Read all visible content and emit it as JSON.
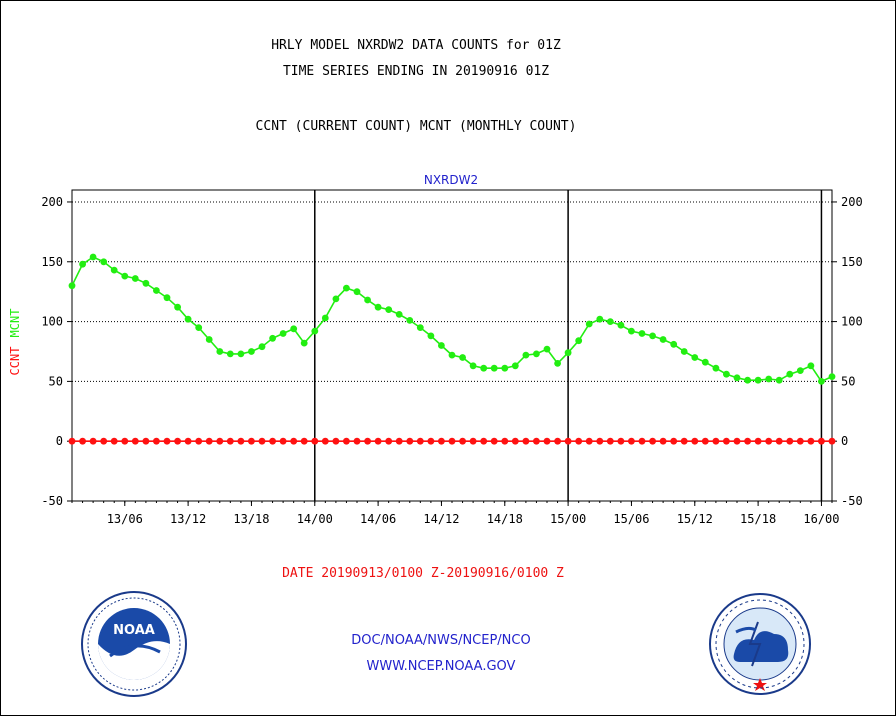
{
  "header": {
    "line1": "HRLY MODEL NXRDW2 DATA COUNTS for 01Z",
    "line2": "TIME SERIES ENDING IN 20190916 01Z",
    "line3": "CCNT (CURRENT COUNT) MCNT (MONTHLY COUNT)"
  },
  "footer": {
    "date_range": "DATE 20190913/0100 Z-20190916/0100 Z",
    "org": "DOC/NOAA/NWS/NCEP/NCO",
    "url": "WWW.NCEP.NOAA.GOV"
  },
  "logos": {
    "left": "noaa-logo",
    "right": "national-weather-service-logo"
  },
  "chart_data": {
    "type": "line",
    "title": "NXRDW2",
    "ylabel_parts": [
      "CCNT",
      "MCNT"
    ],
    "ylim": [
      -50,
      210
    ],
    "yticks": [
      200,
      150,
      100,
      50,
      0,
      -50
    ],
    "xlim": [
      1,
      73
    ],
    "x_unit": "hours since 20190913/0000 Z",
    "xtick_positions": [
      6,
      12,
      18,
      24,
      30,
      36,
      42,
      48,
      54,
      60,
      66,
      72
    ],
    "xtick_labels": [
      "13/06",
      "13/12",
      "13/18",
      "14/00",
      "14/06",
      "14/12",
      "14/18",
      "15/00",
      "15/06",
      "15/12",
      "15/18",
      "16/00"
    ],
    "day_boundaries": [
      24,
      48,
      72
    ],
    "grid": true,
    "colors": {
      "ccnt": "#ff1111",
      "mcnt": "#22ee11",
      "title": "#2222cc",
      "axis": "#000000"
    },
    "series": [
      {
        "name": "CCNT",
        "color": "#ff1111",
        "values": [
          0,
          0,
          0,
          0,
          0,
          0,
          0,
          0,
          0,
          0,
          0,
          0,
          0,
          0,
          0,
          0,
          0,
          0,
          0,
          0,
          0,
          0,
          0,
          0,
          0,
          0,
          0,
          0,
          0,
          0,
          0,
          0,
          0,
          0,
          0,
          0,
          0,
          0,
          0,
          0,
          0,
          0,
          0,
          0,
          0,
          0,
          0,
          0,
          0,
          0,
          0,
          0,
          0,
          0,
          0,
          0,
          0,
          0,
          0,
          0,
          0,
          0,
          0,
          0,
          0,
          0,
          0,
          0,
          0,
          0,
          0,
          0,
          0
        ]
      },
      {
        "name": "MCNT",
        "color": "#22ee11",
        "values": [
          130,
          148,
          154,
          150,
          143,
          138,
          136,
          132,
          126,
          120,
          112,
          102,
          95,
          85,
          75,
          73,
          73,
          75,
          79,
          86,
          90,
          94,
          82,
          92,
          103,
          119,
          128,
          125,
          118,
          112,
          110,
          106,
          101,
          95,
          88,
          80,
          72,
          70,
          63,
          61,
          61,
          61,
          63,
          72,
          73,
          77,
          65,
          74,
          84,
          98,
          102,
          100,
          97,
          92,
          90,
          88,
          85,
          81,
          75,
          70,
          66,
          61,
          56,
          53,
          51,
          51,
          52,
          51,
          56,
          59,
          63,
          50,
          54
        ]
      }
    ]
  }
}
